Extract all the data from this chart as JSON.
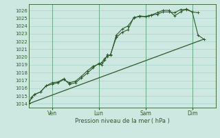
{
  "xlabel": "Pression niveau de la mer ( hPa )",
  "bg_color": "#cce8e0",
  "grid_color": "#a8d4cc",
  "line_color": "#2d5a2d",
  "ylim": [
    1013.5,
    1026.8
  ],
  "yticks": [
    1014,
    1015,
    1016,
    1017,
    1018,
    1019,
    1020,
    1021,
    1022,
    1023,
    1024,
    1025,
    1026
  ],
  "day_labels": [
    "Ven",
    "Lun",
    "Sam",
    "Dim"
  ],
  "day_positions": [
    1,
    3,
    5,
    7
  ],
  "xlim": [
    0,
    8
  ],
  "vline_positions": [
    1,
    3,
    5,
    7
  ],
  "line1_x": [
    0,
    0.125,
    0.25,
    0.5,
    0.75,
    1.0,
    1.25,
    1.5,
    1.75,
    2.0,
    2.25,
    2.5,
    2.75,
    3.0,
    3.125,
    3.25,
    3.375,
    3.5,
    3.75,
    4.0,
    4.25,
    4.5,
    4.75,
    5.0,
    5.125,
    5.25,
    5.5,
    5.75,
    6.0,
    6.25,
    6.5,
    6.75,
    7.0,
    7.25
  ],
  "line1_y": [
    1014.0,
    1014.8,
    1015.2,
    1015.5,
    1016.3,
    1016.5,
    1016.7,
    1017.1,
    1016.7,
    1016.9,
    1017.5,
    1018.2,
    1018.8,
    1019.1,
    1019.3,
    1019.8,
    1020.1,
    1020.3,
    1022.5,
    1023.2,
    1023.5,
    1025.1,
    1025.2,
    1025.2,
    1025.3,
    1025.4,
    1025.5,
    1025.8,
    1025.8,
    1025.7,
    1026.1,
    1026.1,
    1025.8,
    1025.7
  ],
  "line2_x": [
    0,
    0.125,
    0.25,
    0.5,
    0.75,
    1.0,
    1.25,
    1.5,
    1.75,
    2.0,
    2.25,
    2.5,
    2.75,
    3.0,
    3.125,
    3.25,
    3.375,
    3.5,
    3.75,
    4.0,
    4.25,
    4.5,
    4.75,
    5.0,
    5.25,
    5.5,
    5.75,
    6.0,
    6.25,
    6.5,
    6.75,
    7.0,
    7.25,
    7.5
  ],
  "line2_y": [
    1014.0,
    1014.8,
    1015.2,
    1015.5,
    1016.3,
    1016.7,
    1016.8,
    1017.2,
    1016.5,
    1016.7,
    1017.3,
    1017.9,
    1018.6,
    1019.2,
    1019.0,
    1019.6,
    1020.3,
    1020.2,
    1022.8,
    1023.6,
    1024.0,
    1025.0,
    1025.3,
    1025.2,
    1025.4,
    1025.7,
    1026.0,
    1026.0,
    1025.3,
    1025.8,
    1026.2,
    1025.8,
    1022.8,
    1022.3
  ],
  "line3_x": [
    0,
    7.5
  ],
  "line3_y": [
    1014.0,
    1022.3
  ]
}
